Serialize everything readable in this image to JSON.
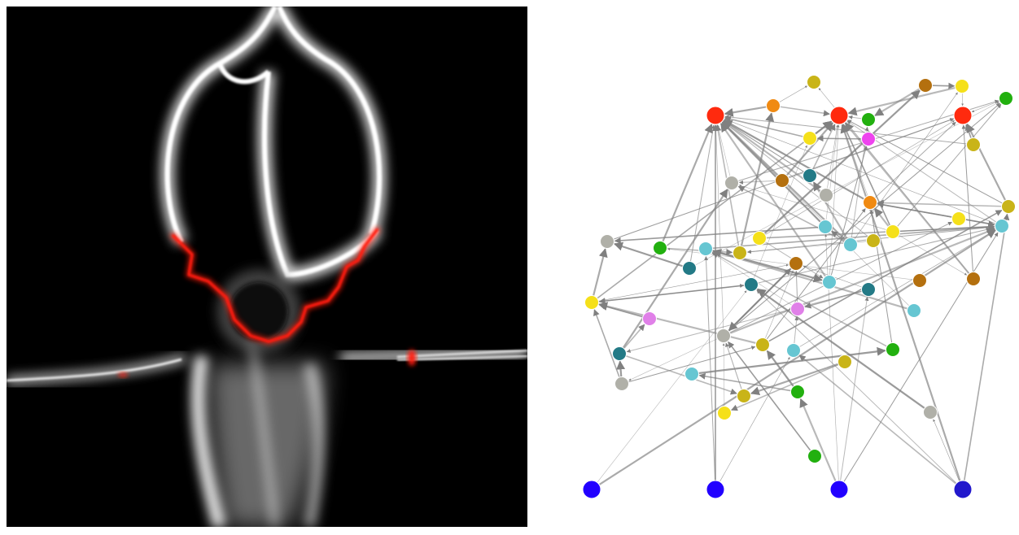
{
  "figure": {
    "left_panel": {
      "kind": "density-field-render",
      "background": "#000000",
      "glow_color": "#ffffff",
      "highlight_color": "#ff1a0a"
    },
    "right_panel": {
      "kind": "directed-graph",
      "background": "#ffffff",
      "edge_color": "#808080"
    }
  },
  "graph": {
    "nodes": [
      {
        "id": "n0",
        "color": "#ff2a0e"
      },
      {
        "id": "n1",
        "color": "#f08a12"
      },
      {
        "id": "n2",
        "color": "#c9b418"
      },
      {
        "id": "n3",
        "color": "#ff2a0e"
      },
      {
        "id": "n4",
        "color": "#22b00f"
      },
      {
        "id": "n5",
        "color": "#b4700f"
      },
      {
        "id": "n6",
        "color": "#f5e01a"
      },
      {
        "id": "n7",
        "color": "#22b00f"
      },
      {
        "id": "n8",
        "color": "#ff2a0e"
      },
      {
        "id": "n9",
        "color": "#f5e01a"
      },
      {
        "id": "n10",
        "color": "#ee44ee"
      },
      {
        "id": "n11",
        "color": "#c9b418"
      },
      {
        "id": "n12",
        "color": "#b0b0a8"
      },
      {
        "id": "n13",
        "color": "#b4700f"
      },
      {
        "id": "n14",
        "color": "#237a86"
      },
      {
        "id": "n15",
        "color": "#b0b0a8"
      },
      {
        "id": "n16",
        "color": "#f08a12"
      },
      {
        "id": "n17",
        "color": "#c9b418"
      },
      {
        "id": "n18",
        "color": "#b0b0a8"
      },
      {
        "id": "n19",
        "color": "#22b00f"
      },
      {
        "id": "n20",
        "color": "#66c6d2"
      },
      {
        "id": "n21",
        "color": "#c9b418"
      },
      {
        "id": "n22",
        "color": "#f5e01a"
      },
      {
        "id": "n23",
        "color": "#66c6d2"
      },
      {
        "id": "n24",
        "color": "#66c6d2"
      },
      {
        "id": "n25",
        "color": "#c9b418"
      },
      {
        "id": "n26",
        "color": "#f5e01a"
      },
      {
        "id": "n27",
        "color": "#f5e01a"
      },
      {
        "id": "n28",
        "color": "#66c6d2"
      },
      {
        "id": "n29",
        "color": "#237a86"
      },
      {
        "id": "n30",
        "color": "#b4700f"
      },
      {
        "id": "n31",
        "color": "#b4700f"
      },
      {
        "id": "n32",
        "color": "#237a86"
      },
      {
        "id": "n33",
        "color": "#66c6d2"
      },
      {
        "id": "n34",
        "color": "#237a86"
      },
      {
        "id": "n35",
        "color": "#b4700f"
      },
      {
        "id": "n36",
        "color": "#f5e01a"
      },
      {
        "id": "n37",
        "color": "#e080e8"
      },
      {
        "id": "n38",
        "color": "#e080e8"
      },
      {
        "id": "n39",
        "color": "#66c6d2"
      },
      {
        "id": "n40",
        "color": "#b0b0a8"
      },
      {
        "id": "n41",
        "color": "#c9b418"
      },
      {
        "id": "n42",
        "color": "#66c6d2"
      },
      {
        "id": "n43",
        "color": "#c9b418"
      },
      {
        "id": "n44",
        "color": "#22b00f"
      },
      {
        "id": "n45",
        "color": "#237a86"
      },
      {
        "id": "n46",
        "color": "#66c6d2"
      },
      {
        "id": "n47",
        "color": "#b0b0a8"
      },
      {
        "id": "n48",
        "color": "#c9b418"
      },
      {
        "id": "n49",
        "color": "#f5e01a"
      },
      {
        "id": "n50",
        "color": "#22b00f"
      },
      {
        "id": "n51",
        "color": "#b0b0a8"
      },
      {
        "id": "n52",
        "color": "#22b00f"
      },
      {
        "id": "n53",
        "color": "#2200ff"
      },
      {
        "id": "n54",
        "color": "#2200ff"
      },
      {
        "id": "n55",
        "color": "#2200ff"
      },
      {
        "id": "n56",
        "color": "#2218cc"
      }
    ],
    "edges": [
      [
        "n53",
        "n29"
      ],
      [
        "n54",
        "n20"
      ],
      [
        "n54",
        "n0"
      ],
      [
        "n55",
        "n50"
      ],
      [
        "n55",
        "n23"
      ],
      [
        "n55",
        "n28"
      ],
      [
        "n56",
        "n42"
      ],
      [
        "n56",
        "n3"
      ],
      [
        "n56",
        "n51"
      ],
      [
        "n56",
        "n29"
      ],
      [
        "n50",
        "n46"
      ],
      [
        "n51",
        "n29"
      ],
      [
        "n40",
        "n47"
      ],
      [
        "n40",
        "n27"
      ],
      [
        "n40",
        "n30"
      ],
      [
        "n40",
        "n28"
      ],
      [
        "n40",
        "n0"
      ],
      [
        "n40",
        "n7"
      ],
      [
        "n24",
        "n12"
      ],
      [
        "n24",
        "n0"
      ],
      [
        "n24",
        "n6"
      ],
      [
        "n24",
        "n4"
      ],
      [
        "n24",
        "n23"
      ],
      [
        "n23",
        "n0"
      ],
      [
        "n23",
        "n3"
      ],
      [
        "n26",
        "n7"
      ],
      [
        "n26",
        "n3"
      ],
      [
        "n26",
        "n16"
      ],
      [
        "n26",
        "n12"
      ],
      [
        "n26",
        "n28"
      ],
      [
        "n21",
        "n0"
      ],
      [
        "n21",
        "n1"
      ],
      [
        "n28",
        "n0"
      ],
      [
        "n28",
        "n3"
      ],
      [
        "n28",
        "n16"
      ],
      [
        "n16",
        "n0"
      ],
      [
        "n16",
        "n3"
      ],
      [
        "n16",
        "n8"
      ],
      [
        "n16",
        "n28"
      ],
      [
        "n15",
        "n0"
      ],
      [
        "n15",
        "n3"
      ],
      [
        "n14",
        "n0"
      ],
      [
        "n14",
        "n3"
      ],
      [
        "n13",
        "n3"
      ],
      [
        "n13",
        "n8"
      ],
      [
        "n13",
        "n12"
      ],
      [
        "n9",
        "n0"
      ],
      [
        "n9",
        "n3"
      ],
      [
        "n9",
        "n10"
      ],
      [
        "n11",
        "n0"
      ],
      [
        "n11",
        "n8"
      ],
      [
        "n6",
        "n3"
      ],
      [
        "n6",
        "n8"
      ],
      [
        "n17",
        "n3"
      ],
      [
        "n17",
        "n16"
      ],
      [
        "n17",
        "n8"
      ],
      [
        "n22",
        "n8"
      ],
      [
        "n22",
        "n33"
      ],
      [
        "n22",
        "n28"
      ],
      [
        "n22",
        "n5"
      ],
      [
        "n31",
        "n19"
      ],
      [
        "n29",
        "n28"
      ],
      [
        "n29",
        "n36"
      ],
      [
        "n33",
        "n0"
      ],
      [
        "n33",
        "n3"
      ],
      [
        "n33",
        "n10"
      ],
      [
        "n45",
        "n37"
      ],
      [
        "n45",
        "n12"
      ],
      [
        "n34",
        "n30"
      ],
      [
        "n34",
        "n45"
      ],
      [
        "n34",
        "n38"
      ],
      [
        "n32",
        "n18"
      ],
      [
        "n32",
        "n7"
      ],
      [
        "n32",
        "n0"
      ],
      [
        "n41",
        "n17"
      ],
      [
        "n41",
        "n36"
      ],
      [
        "n41",
        "n30"
      ],
      [
        "n41",
        "n16"
      ],
      [
        "n43",
        "n49"
      ],
      [
        "n43",
        "n48"
      ],
      [
        "n42",
        "n28"
      ],
      [
        "n42",
        "n38"
      ],
      [
        "n47",
        "n36"
      ],
      [
        "n47",
        "n45"
      ],
      [
        "n38",
        "n20"
      ],
      [
        "n38",
        "n30"
      ],
      [
        "n37",
        "n36"
      ],
      [
        "n39",
        "n20"
      ],
      [
        "n39",
        "n0"
      ],
      [
        "n44",
        "n16"
      ],
      [
        "n44",
        "n20"
      ],
      [
        "n36",
        "n18"
      ],
      [
        "n36",
        "n30"
      ],
      [
        "n36",
        "n29"
      ],
      [
        "n36",
        "n3"
      ],
      [
        "n30",
        "n40"
      ],
      [
        "n49",
        "n40"
      ],
      [
        "n48",
        "n40"
      ],
      [
        "n52",
        "n40"
      ],
      [
        "n35",
        "n3"
      ],
      [
        "n35",
        "n2"
      ],
      [
        "n35",
        "n8"
      ],
      [
        "n1",
        "n3"
      ],
      [
        "n1",
        "n0"
      ],
      [
        "n1",
        "n2"
      ],
      [
        "n4",
        "n3"
      ],
      [
        "n20",
        "n28"
      ],
      [
        "n20",
        "n33"
      ],
      [
        "n12",
        "n0"
      ],
      [
        "n12",
        "n7"
      ],
      [
        "n5",
        "n6"
      ],
      [
        "n5",
        "n4"
      ],
      [
        "n7",
        "n8"
      ],
      [
        "n18",
        "n8"
      ],
      [
        "n19",
        "n21"
      ],
      [
        "n19",
        "n0"
      ],
      [
        "n25",
        "n21"
      ],
      [
        "n25",
        "n0"
      ],
      [
        "n10",
        "n9"
      ],
      [
        "n46",
        "n44"
      ],
      [
        "n29",
        "n9"
      ],
      [
        "n28",
        "n21"
      ],
      [
        "n23",
        "n18"
      ],
      [
        "n24",
        "n14"
      ],
      [
        "n26",
        "n35"
      ],
      [
        "n47",
        "n41"
      ],
      [
        "n45",
        "n48"
      ],
      [
        "n53",
        "n28"
      ],
      [
        "n54",
        "n42"
      ],
      [
        "n55",
        "n34"
      ],
      [
        "n56",
        "n17"
      ],
      [
        "n50",
        "n41"
      ]
    ]
  }
}
